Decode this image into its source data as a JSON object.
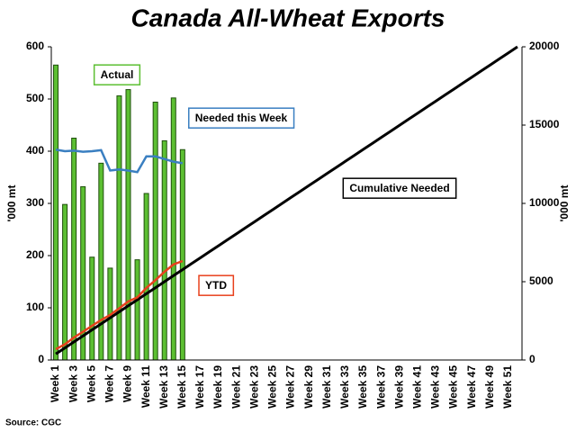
{
  "chart_data": {
    "type": "bar",
    "title": "Canada All-Wheat Exports",
    "y_label": "'000 mt",
    "y2_label": "'000 mt",
    "source": "Source: CGC",
    "categories": [
      "Week 1",
      null,
      "Week 3",
      null,
      "Week 5",
      null,
      "Week 7",
      null,
      "Week 9",
      null,
      "Week 11",
      null,
      "Week 13",
      null,
      "Week 15",
      null,
      "Week 17",
      null,
      "Week 19",
      null,
      "Week 21",
      null,
      "Week 23",
      null,
      "Week 25",
      null,
      "Week 27",
      null,
      "Week 29",
      null,
      "Week 31",
      null,
      "Week 33",
      null,
      "Week 35",
      null,
      "Week 37",
      null,
      "Week 39",
      null,
      "Week 41",
      null,
      "Week 43",
      null,
      "Week 45",
      null,
      "Week 47",
      null,
      "Week 49",
      null,
      "Week 51",
      null
    ],
    "series": [
      {
        "name": "Actual",
        "type": "bar",
        "color": "#5cbf32",
        "values": [
          565,
          298,
          425,
          332,
          197,
          377,
          176,
          506,
          518,
          192,
          319,
          494,
          420,
          502,
          403,
          null,
          null,
          null,
          null,
          null,
          null,
          null,
          null,
          null,
          null,
          null,
          null,
          null,
          null,
          null,
          null,
          null,
          null,
          null,
          null,
          null,
          null,
          null,
          null,
          null,
          null,
          null,
          null,
          null,
          null,
          null,
          null,
          null,
          null,
          null,
          null,
          null
        ]
      },
      {
        "name": "Needed this Week",
        "type": "line",
        "color": "#3a7fc1",
        "values": [
          403,
          400,
          401,
          399,
          400,
          402,
          363,
          365,
          363,
          360,
          390,
          390,
          385,
          380,
          377,
          null,
          null,
          null,
          null,
          null,
          null,
          null,
          null,
          null,
          null,
          null,
          null,
          null,
          null,
          null,
          null,
          null,
          null,
          null,
          null,
          null,
          null,
          null,
          null,
          null,
          null,
          null,
          null,
          null,
          null,
          null,
          null,
          null,
          null,
          null,
          null,
          null
        ]
      },
      {
        "name": "Cumulative Needed",
        "type": "line",
        "axis": "y2",
        "color": "#000000",
        "values": [
          385,
          769,
          1154,
          1538,
          1923,
          2308,
          2692,
          3077,
          3462,
          3846,
          4231,
          4615,
          5000,
          5385,
          5769,
          6154,
          6538,
          6923,
          7308,
          7692,
          8077,
          8462,
          8846,
          9231,
          9615,
          10000,
          10385,
          10769,
          11154,
          11538,
          11923,
          12308,
          12692,
          13077,
          13462,
          13846,
          14231,
          14615,
          15000,
          15385,
          15769,
          16154,
          16538,
          16923,
          17308,
          17692,
          18077,
          18462,
          18846,
          19231,
          19615,
          20000
        ]
      },
      {
        "name": "YTD",
        "type": "line",
        "axis": "y2",
        "color": "#e8401c",
        "values": [
          690,
          1000,
          1437,
          1800,
          2184,
          2550,
          2874,
          3300,
          3736,
          4000,
          4600,
          5100,
          5632,
          6100,
          6322,
          null,
          null,
          null,
          null,
          null,
          null,
          null,
          null,
          null,
          null,
          null,
          null,
          null,
          null,
          null,
          null,
          null,
          null,
          null,
          null,
          null,
          null,
          null,
          null,
          null,
          null,
          null,
          null,
          null,
          null,
          null,
          null,
          null,
          null,
          null,
          null,
          null
        ]
      }
    ],
    "ylim": [
      0,
      600
    ],
    "yticks": [
      0,
      100,
      200,
      300,
      400,
      500,
      600
    ],
    "y2lim": [
      0,
      20000
    ],
    "y2ticks": [
      0,
      5000,
      10000,
      15000,
      20000
    ]
  }
}
